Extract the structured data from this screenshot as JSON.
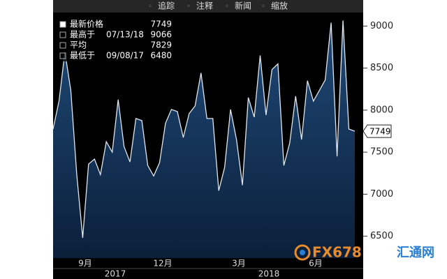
{
  "toolbar": [
    "追踪",
    "注释",
    "新闻",
    "缩放"
  ],
  "chart_data": {
    "type": "area",
    "series": [
      {
        "color": "#dfe6ee",
        "values": [
          7775,
          8108,
          8692,
          8233,
          7233,
          6480,
          7358,
          7417,
          7233,
          7625,
          7500,
          8125,
          7567,
          7383,
          7900,
          7875,
          7342,
          7217,
          7375,
          7842,
          8008,
          7983,
          7675,
          7958,
          8050,
          8442,
          7900,
          7900,
          7042,
          7317,
          8008,
          7650,
          7108,
          8150,
          7917,
          8650,
          7942,
          8483,
          8550,
          7342,
          7608,
          8167,
          7650,
          8350,
          8108,
          8233,
          8358,
          9040,
          7450,
          9066,
          7775,
          7749
        ]
      }
    ],
    "legend": [
      {
        "label": "最新价格",
        "value": "7749"
      },
      {
        "label": "最高于",
        "date": "07/13/18",
        "value": "9066"
      },
      {
        "label": "平均",
        "value": "7829"
      },
      {
        "label": "最低于",
        "date": "09/08/17",
        "value": "6480"
      }
    ],
    "ylim": [
      6240,
      9310
    ],
    "yticks": [
      6500,
      7000,
      7500,
      8000,
      8500,
      9000
    ],
    "month_labels": [
      "9月",
      "12月",
      "3月",
      "6月"
    ],
    "year_labels": [
      "2017",
      "2018"
    ]
  },
  "watermark": {
    "brand": "FX678",
    "name": "汇通网"
  }
}
